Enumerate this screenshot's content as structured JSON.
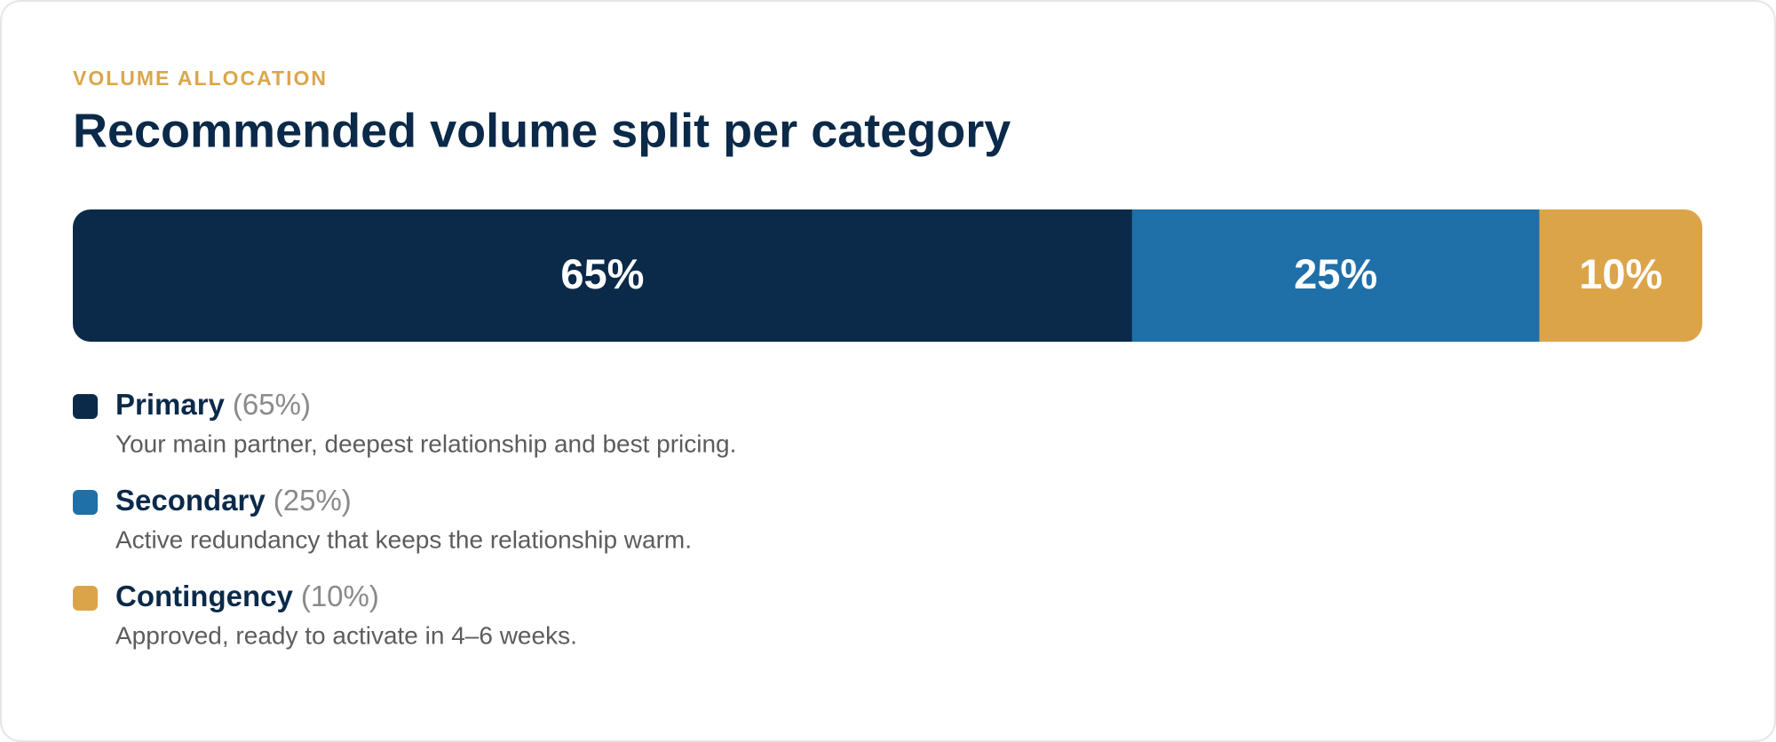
{
  "chart_data": {
    "type": "stacked-bar",
    "eyebrow": "VOLUME ALLOCATION",
    "title": "Recommended volume split per category",
    "series": [
      {
        "name": "Primary",
        "color": "#0b2a4a",
        "values": [
          65
        ],
        "value_labels": [
          "65%"
        ],
        "legend_label": "(65%)",
        "description": "Your main partner, deepest relationship and best pricing."
      },
      {
        "name": "Secondary",
        "color": "#1f6fa8",
        "values": [
          25
        ],
        "value_labels": [
          "25%"
        ],
        "legend_label": "(25%)",
        "description": "Active redundancy that keeps the relationship warm."
      },
      {
        "name": "Contingency",
        "color": "#dca449",
        "values": [
          10
        ],
        "value_labels": [
          "10%"
        ],
        "legend_label": "(10%)",
        "description": "Approved, ready to activate in 4–6 weeks."
      }
    ]
  }
}
